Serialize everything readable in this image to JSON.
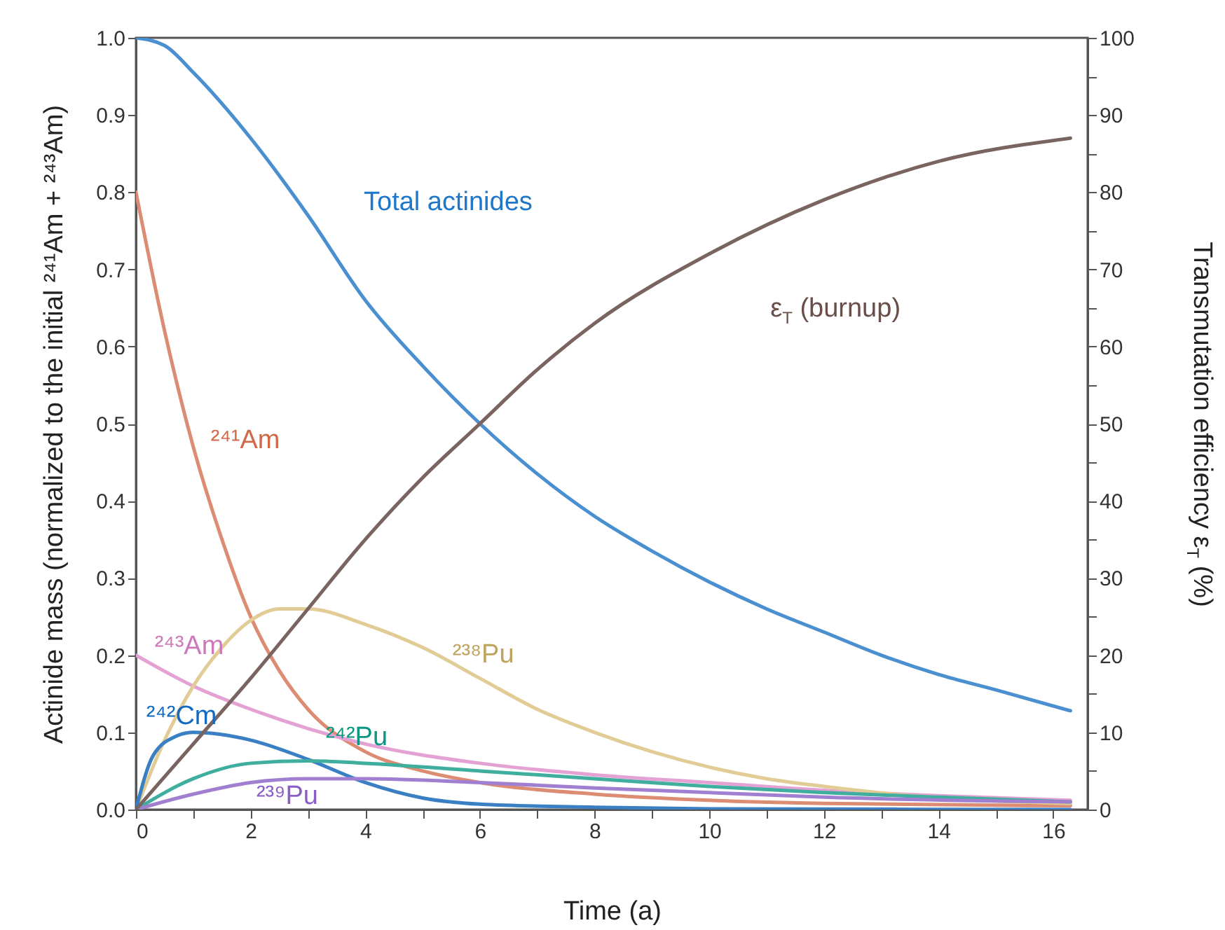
{
  "chart_data": {
    "type": "line",
    "xlabel": "Time  (a)",
    "ylabel": "Actinide mass (normalized to the initial ²⁴¹Am + ²⁴³Am)",
    "y2label": "Transmutation efficiency ε$_{T}$ (%)",
    "xlim": [
      0,
      16.6
    ],
    "xticks": [
      0,
      {
        "value": 1,
        "label": null
      },
      2,
      {
        "value": 3,
        "label": null
      },
      4,
      {
        "value": 5,
        "label": null
      },
      6,
      {
        "value": 7,
        "label": null
      },
      8,
      {
        "value": 9,
        "label": null
      },
      10,
      {
        "value": 11,
        "label": null
      },
      12,
      {
        "value": 13,
        "label": null
      },
      14,
      {
        "value": 15,
        "label": null
      },
      16
    ],
    "ylim": [
      0,
      1
    ],
    "yticks": [
      {
        "value": 0,
        "label": "0.0"
      },
      {
        "value": 0.05,
        "label": null
      },
      0.1,
      {
        "value": 0.15,
        "label": null
      },
      0.2,
      {
        "value": 0.25,
        "label": null
      },
      0.3,
      {
        "value": 0.35,
        "label": null
      },
      0.4,
      {
        "value": 0.45,
        "label": null
      },
      0.5,
      {
        "value": 0.55,
        "label": null
      },
      0.6,
      {
        "value": 0.65,
        "label": null
      },
      0.7,
      {
        "value": 0.75,
        "label": null
      },
      0.8,
      {
        "value": 0.85,
        "label": null
      },
      0.9,
      {
        "value": 0.95,
        "label": null
      },
      {
        "value": 1,
        "label": "1.0"
      }
    ],
    "y2lim": [
      0,
      100
    ],
    "y2ticks": [
      0,
      {
        "value": 5,
        "label": null
      },
      10,
      {
        "value": 15,
        "label": null
      },
      20,
      {
        "value": 25,
        "label": null
      },
      30,
      {
        "value": 35,
        "label": null
      },
      40,
      {
        "value": 45,
        "label": null
      },
      50,
      {
        "value": 55,
        "label": null
      },
      60,
      {
        "value": 65,
        "label": null
      },
      70,
      {
        "value": 75,
        "label": null
      },
      80,
      {
        "value": 85,
        "label": null
      },
      90,
      {
        "value": 95,
        "label": null
      },
      100
    ],
    "grid": false,
    "marker": "none",
    "line_style": "solid",
    "series": [
      {
        "name": "Total actinides",
        "color": "#4a8fd0",
        "x": [
          0,
          0.5,
          1,
          2,
          3,
          4,
          5,
          6,
          7,
          8,
          9,
          10,
          11,
          12,
          13,
          14,
          15,
          16.3
        ],
        "values": [
          1.0,
          0.99,
          0.955,
          0.87,
          0.77,
          0.66,
          0.575,
          0.5,
          0.435,
          0.38,
          0.335,
          0.295,
          0.26,
          0.23,
          0.2,
          0.175,
          0.155,
          0.128
        ]
      },
      {
        "name": "ε$_{T}$ (burnup)",
        "color": "#7a6460",
        "axis": "y2",
        "x": [
          0,
          1,
          2,
          3,
          4,
          5,
          6,
          7,
          8,
          10,
          12,
          14,
          16.3
        ],
        "values": [
          0,
          8.5,
          17,
          26,
          35,
          43,
          50,
          57,
          63,
          72,
          79,
          84,
          87
        ]
      },
      {
        "name": "²⁴¹Am",
        "color": "#dc8c72",
        "x": [
          0,
          0.5,
          1,
          1.5,
          2,
          2.5,
          3,
          4,
          5,
          6,
          8,
          10,
          12,
          16.3
        ],
        "values": [
          0.8,
          0.62,
          0.47,
          0.35,
          0.25,
          0.18,
          0.13,
          0.075,
          0.05,
          0.035,
          0.02,
          0.012,
          0.008,
          0.005
        ]
      },
      {
        "name": "²⁴³Am",
        "color": "#e4a2d4",
        "x": [
          0,
          1,
          2,
          3,
          4,
          6,
          8,
          10,
          12,
          14,
          16.3
        ],
        "values": [
          0.2,
          0.16,
          0.13,
          0.105,
          0.085,
          0.06,
          0.045,
          0.035,
          0.025,
          0.018,
          0.012
        ]
      },
      {
        "name": "²³⁸Pu",
        "color": "#e2cc96",
        "x": [
          0,
          0.5,
          1,
          1.5,
          2,
          2.5,
          3,
          4,
          5,
          6,
          7,
          8,
          9,
          10,
          11,
          12,
          14,
          16.3
        ],
        "values": [
          0,
          0.09,
          0.16,
          0.21,
          0.245,
          0.26,
          0.26,
          0.24,
          0.21,
          0.17,
          0.13,
          0.1,
          0.075,
          0.055,
          0.04,
          0.03,
          0.015,
          0.008
        ]
      },
      {
        "name": "²⁴²Cm",
        "color": "#3a7fc4",
        "x": [
          0,
          0.3,
          0.7,
          1,
          2,
          3,
          4,
          5,
          6,
          8,
          10,
          16.3
        ],
        "values": [
          0,
          0.07,
          0.095,
          0.1,
          0.09,
          0.065,
          0.035,
          0.015,
          0.007,
          0.003,
          0.001,
          0
        ]
      },
      {
        "name": "²⁴²Pu",
        "color": "#3fae9e",
        "x": [
          0,
          1,
          2,
          3,
          4,
          6,
          8,
          10,
          12,
          14,
          16.3
        ],
        "values": [
          0,
          0.04,
          0.06,
          0.063,
          0.06,
          0.05,
          0.04,
          0.03,
          0.022,
          0.016,
          0.01
        ]
      },
      {
        "name": "²³⁹Pu",
        "color": "#a07ed0",
        "x": [
          0,
          1,
          2,
          3,
          4,
          6,
          8,
          10,
          12,
          16.3
        ],
        "values": [
          0,
          0.02,
          0.035,
          0.04,
          0.04,
          0.035,
          0.028,
          0.022,
          0.016,
          0.01
        ]
      }
    ]
  }
}
